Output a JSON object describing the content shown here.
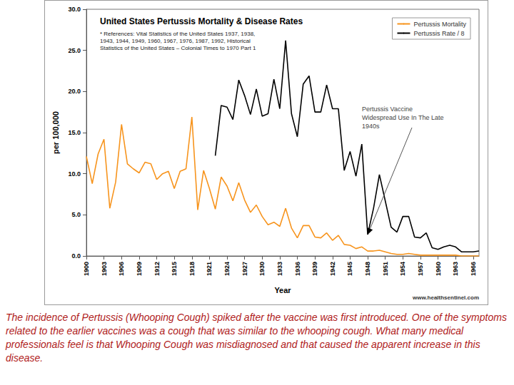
{
  "chart_data": {
    "type": "line",
    "title": "United States Pertussis Mortality & Disease Rates",
    "subtitle": "* References: Vital Statistics of the United States 1937, 1938, 1943, 1944, 1949, 1960, 1967, 1976, 1987, 1992, Historical Statistics of the United States – Colonial Times to 1970 Part 1",
    "x_label": "Year",
    "y_label": "per 100,000",
    "x": [
      1900,
      1901,
      1902,
      1903,
      1904,
      1905,
      1906,
      1907,
      1908,
      1909,
      1910,
      1911,
      1912,
      1913,
      1914,
      1915,
      1916,
      1917,
      1918,
      1919,
      1920,
      1921,
      1922,
      1923,
      1924,
      1925,
      1926,
      1927,
      1928,
      1929,
      1930,
      1931,
      1932,
      1933,
      1934,
      1935,
      1936,
      1937,
      1938,
      1939,
      1940,
      1941,
      1942,
      1943,
      1944,
      1945,
      1946,
      1947,
      1948,
      1949,
      1950,
      1951,
      1952,
      1953,
      1954,
      1955,
      1956,
      1957,
      1958,
      1959,
      1960,
      1961,
      1962,
      1963,
      1964,
      1965,
      1966,
      1967
    ],
    "series": [
      {
        "name": "Pertussis Mortality",
        "color": "#f7941d",
        "values": [
          12.1,
          8.8,
          12.4,
          14.2,
          5.8,
          9.0,
          16.0,
          11.2,
          10.6,
          10.1,
          11.4,
          11.2,
          9.3,
          10.0,
          10.3,
          8.2,
          10.3,
          10.6,
          16.9,
          5.6,
          10.4,
          8.2,
          5.7,
          9.6,
          8.5,
          6.7,
          8.9,
          6.8,
          5.3,
          6.2,
          4.8,
          3.8,
          4.1,
          3.6,
          5.8,
          3.4,
          2.2,
          3.7,
          3.7,
          2.3,
          2.2,
          2.8,
          1.9,
          2.5,
          1.4,
          1.3,
          0.9,
          1.1,
          0.6,
          0.6,
          0.7,
          0.5,
          0.3,
          0.2,
          0.2,
          0.3,
          0.2,
          0.1,
          0.1,
          0.1,
          0.1,
          0.1,
          0.1,
          0.1,
          0,
          0,
          0,
          0
        ]
      },
      {
        "name": "Pertussis Rate / 8",
        "color": "#000000",
        "values": [
          null,
          null,
          null,
          null,
          null,
          null,
          null,
          null,
          null,
          null,
          null,
          null,
          null,
          null,
          null,
          null,
          null,
          null,
          null,
          null,
          null,
          null,
          12.2,
          18.3,
          18.1,
          16.6,
          21.4,
          19.5,
          17.2,
          20.3,
          17.0,
          17.3,
          21.5,
          17.9,
          26.2,
          17.3,
          14.5,
          20.9,
          21.9,
          17.5,
          17.5,
          20.8,
          17.9,
          17.9,
          10.4,
          12.7,
          9.7,
          13.6,
          2.6,
          5.8,
          9.9,
          6.7,
          3.5,
          2.9,
          4.8,
          4.8,
          2.3,
          2.2,
          2.8,
          1.0,
          0.8,
          1.1,
          1.3,
          1.1,
          0.5,
          0.5,
          0.5,
          0.6
        ]
      }
    ],
    "xlim": [
      1900,
      1967
    ],
    "xticks": [
      1900,
      1903,
      1906,
      1909,
      1912,
      1915,
      1918,
      1921,
      1924,
      1927,
      1930,
      1933,
      1936,
      1939,
      1942,
      1945,
      1948,
      1951,
      1954,
      1957,
      1960,
      1963,
      1966
    ],
    "ylim": [
      0,
      30
    ],
    "yticks": [
      {
        "value": 0,
        "label": "0.0"
      },
      {
        "value": 5,
        "label": "5.0"
      },
      {
        "value": 10,
        "label": "10.0"
      },
      {
        "value": 15,
        "label": "15.0"
      },
      {
        "value": 20,
        "label": "20.0"
      },
      {
        "value": 25,
        "label": "25.0"
      },
      {
        "value": 30,
        "label": "30.0"
      }
    ],
    "grid": false,
    "legend": "top-right",
    "annotations": [
      {
        "text": "Pertussis Vaccine Widespread Use In The Late 1940s",
        "x": 1948,
        "y": 2.6
      }
    ],
    "source": "www.healthsentinel.com",
    "caption": "The incidence of Pertussis (Whooping Cough) spiked after the vaccine was first introduced. One of the symptoms related to the earlier vaccines was a cough that was similar to the whooping cough. What many medical professionals feel is that Whooping Cough was misdiagnosed and that caused the apparent increase in this disease."
  }
}
